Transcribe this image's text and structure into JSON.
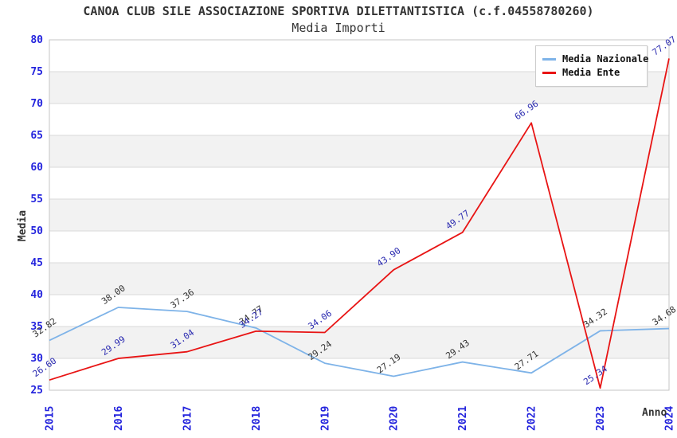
{
  "title": "CANOA CLUB SILE ASSOCIAZIONE SPORTIVA DILETTANTISTICA (c.f.04558780260)",
  "subtitle": "Media Importi",
  "chart_data": {
    "type": "line",
    "x": [
      2015,
      2016,
      2017,
      2018,
      2019,
      2020,
      2021,
      2022,
      2023,
      2024
    ],
    "xlabel": "Anno",
    "ylabel": "Media",
    "ylim": [
      25,
      80
    ],
    "ytick_step": 5,
    "grid": "horizontal",
    "banded_background": true,
    "legend_position": "top-right",
    "series": [
      {
        "name": "Media Nazionale",
        "color": "#7eb3e8",
        "label_color": "#333333",
        "values": [
          32.82,
          38.0,
          37.36,
          34.77,
          29.24,
          27.19,
          29.43,
          27.71,
          34.32,
          34.68
        ]
      },
      {
        "name": "Media Ente",
        "color": "#e81414",
        "label_color": "#2a2ab0",
        "values": [
          26.6,
          29.99,
          31.04,
          34.27,
          34.06,
          43.9,
          49.77,
          66.96,
          25.34,
          77.07
        ]
      }
    ],
    "colors": {
      "tick_label": "#2424dd",
      "band": "#f2f2f2",
      "grid": "#d9d9d9",
      "border": "#c6c6c6",
      "title": "#333333"
    }
  }
}
